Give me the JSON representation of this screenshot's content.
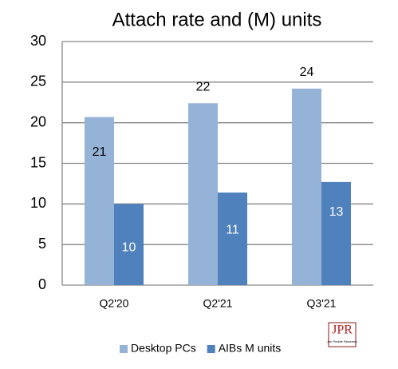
{
  "chart_data": {
    "type": "bar",
    "title": "Attach rate and (M) units",
    "categories": [
      "Q2'20",
      "Q2'21",
      "Q3'21"
    ],
    "series": [
      {
        "name": "Desktop PCs",
        "color": "#95b3d7",
        "values": [
          20.7,
          22.4,
          24.2
        ],
        "value_labels": [
          "21",
          "22",
          "24"
        ]
      },
      {
        "name": "AIBs M units",
        "color": "#4f81bd",
        "values": [
          10.0,
          11.4,
          12.7
        ],
        "value_labels": [
          "10",
          "11",
          "13"
        ]
      }
    ],
    "ylim": [
      0,
      30
    ],
    "yticks": [
      0,
      5,
      10,
      15,
      20,
      25,
      30
    ],
    "grid": true,
    "legend": "bottom",
    "logo": "JPR",
    "logo_subtitle": "Jon Peddie Research"
  }
}
